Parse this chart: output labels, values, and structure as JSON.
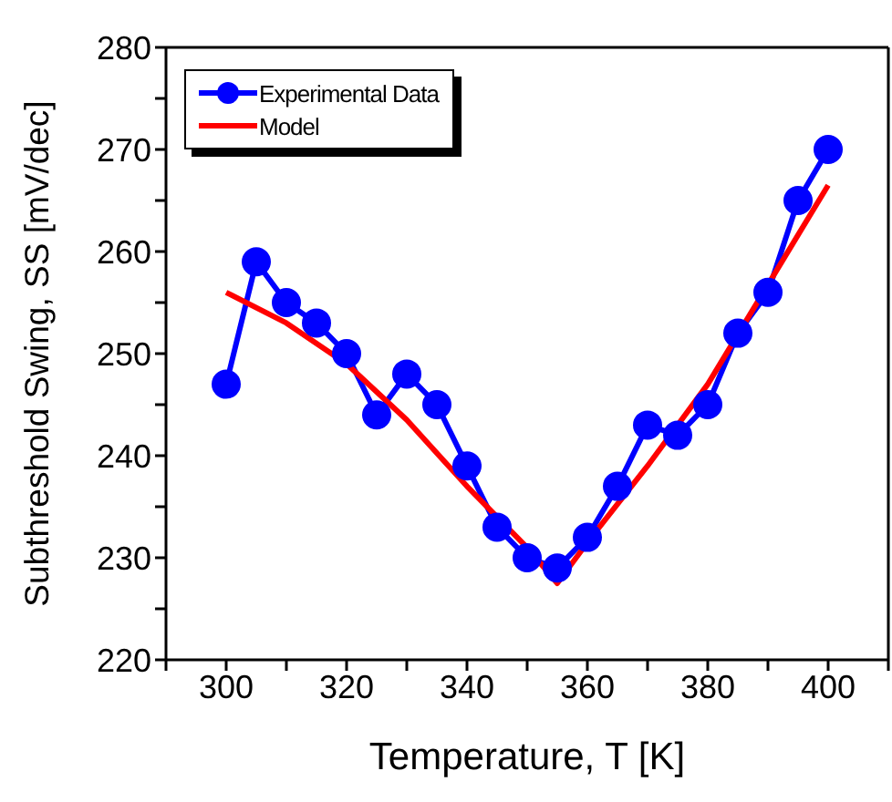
{
  "chart_data": {
    "type": "line",
    "xlabel": "Temperature, T [K]",
    "ylabel": "Subthreshold Swing, SS [mV/dec]",
    "xlim": [
      290,
      410
    ],
    "xticks": [
      {
        "value": 290,
        "label": null
      },
      300,
      {
        "value": 310,
        "label": null
      },
      320,
      {
        "value": 330,
        "label": null
      },
      340,
      {
        "value": 350,
        "label": null
      },
      360,
      {
        "value": 370,
        "label": null
      },
      380,
      {
        "value": 390,
        "label": null
      },
      400,
      {
        "value": 410,
        "label": null
      }
    ],
    "ylim": [
      220,
      280
    ],
    "yticks": [
      220,
      {
        "value": 225,
        "label": null
      },
      230,
      {
        "value": 235,
        "label": null
      },
      240,
      {
        "value": 245,
        "label": null
      },
      250,
      {
        "value": 255,
        "label": null
      },
      260,
      {
        "value": 265,
        "label": null
      },
      270,
      {
        "value": 275,
        "label": null
      },
      280
    ],
    "grid": false,
    "legend": "top left",
    "line_style": "solid",
    "series": [
      {
        "name": "Experimental Data",
        "color": "#0000ff",
        "marker": "circle",
        "x": [
          300,
          305,
          310,
          315,
          320,
          325,
          330,
          335,
          340,
          345,
          350,
          355,
          360,
          365,
          370,
          375,
          380,
          385,
          390,
          395,
          400
        ],
        "values": [
          247,
          259,
          255,
          253,
          250,
          244,
          248,
          245,
          239,
          233,
          230,
          229,
          232,
          237,
          243,
          242,
          245,
          252,
          256,
          265,
          270
        ]
      },
      {
        "name": "Model",
        "color": "#ff0000",
        "marker": "none",
        "x": [
          300,
          310,
          320,
          330,
          340,
          350,
          355,
          360,
          370,
          380,
          400
        ],
        "values": [
          256,
          253,
          249,
          243.5,
          237,
          231,
          227.5,
          231.5,
          239,
          247,
          266.5
        ]
      }
    ]
  }
}
